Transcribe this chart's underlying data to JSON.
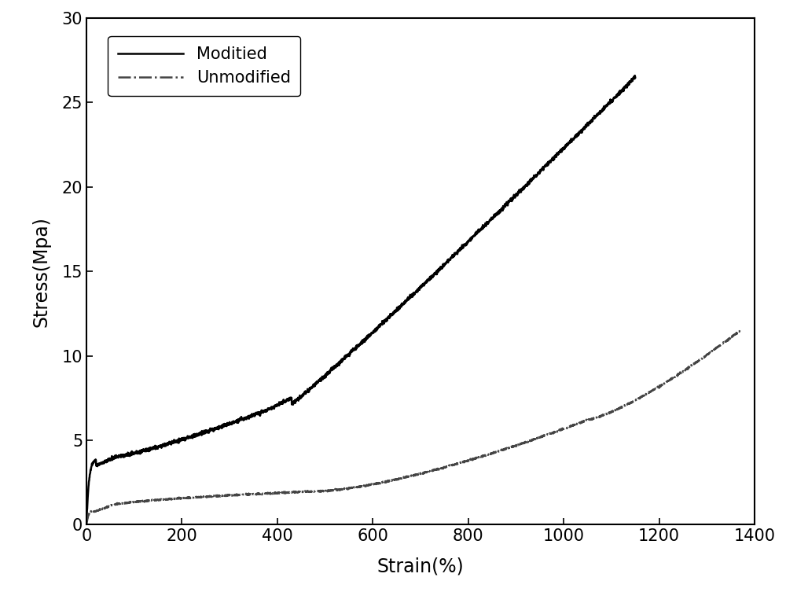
{
  "title": "",
  "xlabel": "Strain(%)",
  "ylabel": "Stress(Mpa)",
  "xlim": [
    0,
    1400
  ],
  "ylim": [
    0,
    30
  ],
  "xticks": [
    0,
    200,
    400,
    600,
    800,
    1000,
    1200,
    1400
  ],
  "yticks": [
    0,
    5,
    10,
    15,
    20,
    25,
    30
  ],
  "modified_color": "#000000",
  "unmodified_color": "#444444",
  "legend_modified": "Moditied",
  "legend_unmodified": "Unmodified",
  "background_color": "#ffffff",
  "line_width": 1.8,
  "fontsize_label": 17,
  "fontsize_tick": 15,
  "fontsize_legend": 15
}
